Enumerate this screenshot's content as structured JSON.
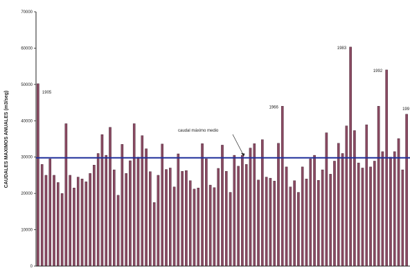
{
  "chart_data": {
    "type": "bar",
    "title": "",
    "xlabel": "",
    "ylabel": "CAUDALES MAXIMOS ANUALES (m3/seg)",
    "ylim": [
      0,
      70000
    ],
    "yticks": [
      0,
      10000,
      20000,
      30000,
      40000,
      50000,
      60000,
      70000
    ],
    "ytick_labels": [
      "0",
      "10000",
      "20000",
      "30000",
      "40000",
      "50000",
      "60000",
      "70000"
    ],
    "grid": false,
    "legend": "none",
    "colors": {
      "bar": "#8a4a62",
      "bar_edge": "#3a1a2a",
      "mean_line": "#1f2f9a",
      "axis": "#222222"
    },
    "values": [
      50200,
      28000,
      25000,
      29500,
      25000,
      23000,
      20000,
      39200,
      25000,
      21500,
      24500,
      24000,
      23200,
      25500,
      27800,
      31000,
      36200,
      30500,
      38200,
      26500,
      19500,
      33500,
      25500,
      29000,
      39200,
      30000,
      35900,
      32300,
      26000,
      17500,
      25000,
      33600,
      26600,
      27000,
      21800,
      30900,
      26100,
      26300,
      23500,
      21200,
      21500,
      33700,
      29500,
      22300,
      21600,
      26900,
      33300,
      26100,
      20300,
      30500,
      27500,
      30500,
      28000,
      32500,
      33700,
      23700,
      34800,
      24500,
      24200,
      23400,
      33800,
      44000,
      27300,
      21800,
      23500,
      20300,
      27300,
      24000,
      29500,
      30500,
      23600,
      26500,
      36700,
      25300,
      28900,
      33800,
      31000,
      38600,
      60300,
      37300,
      28400,
      27000,
      38900,
      27300,
      28900,
      44000,
      31500,
      54000,
      30000,
      31500,
      35100,
      26500,
      41800
    ],
    "mean_line": {
      "value": 29800,
      "label": "caudal máximo medio"
    },
    "annotations": [
      {
        "index": 0,
        "label": "1905"
      },
      {
        "index": 61,
        "label": "1966"
      },
      {
        "index": 78,
        "label": "1983"
      },
      {
        "index": 87,
        "label": "1992"
      },
      {
        "index": 92,
        "label": "199"
      }
    ]
  }
}
